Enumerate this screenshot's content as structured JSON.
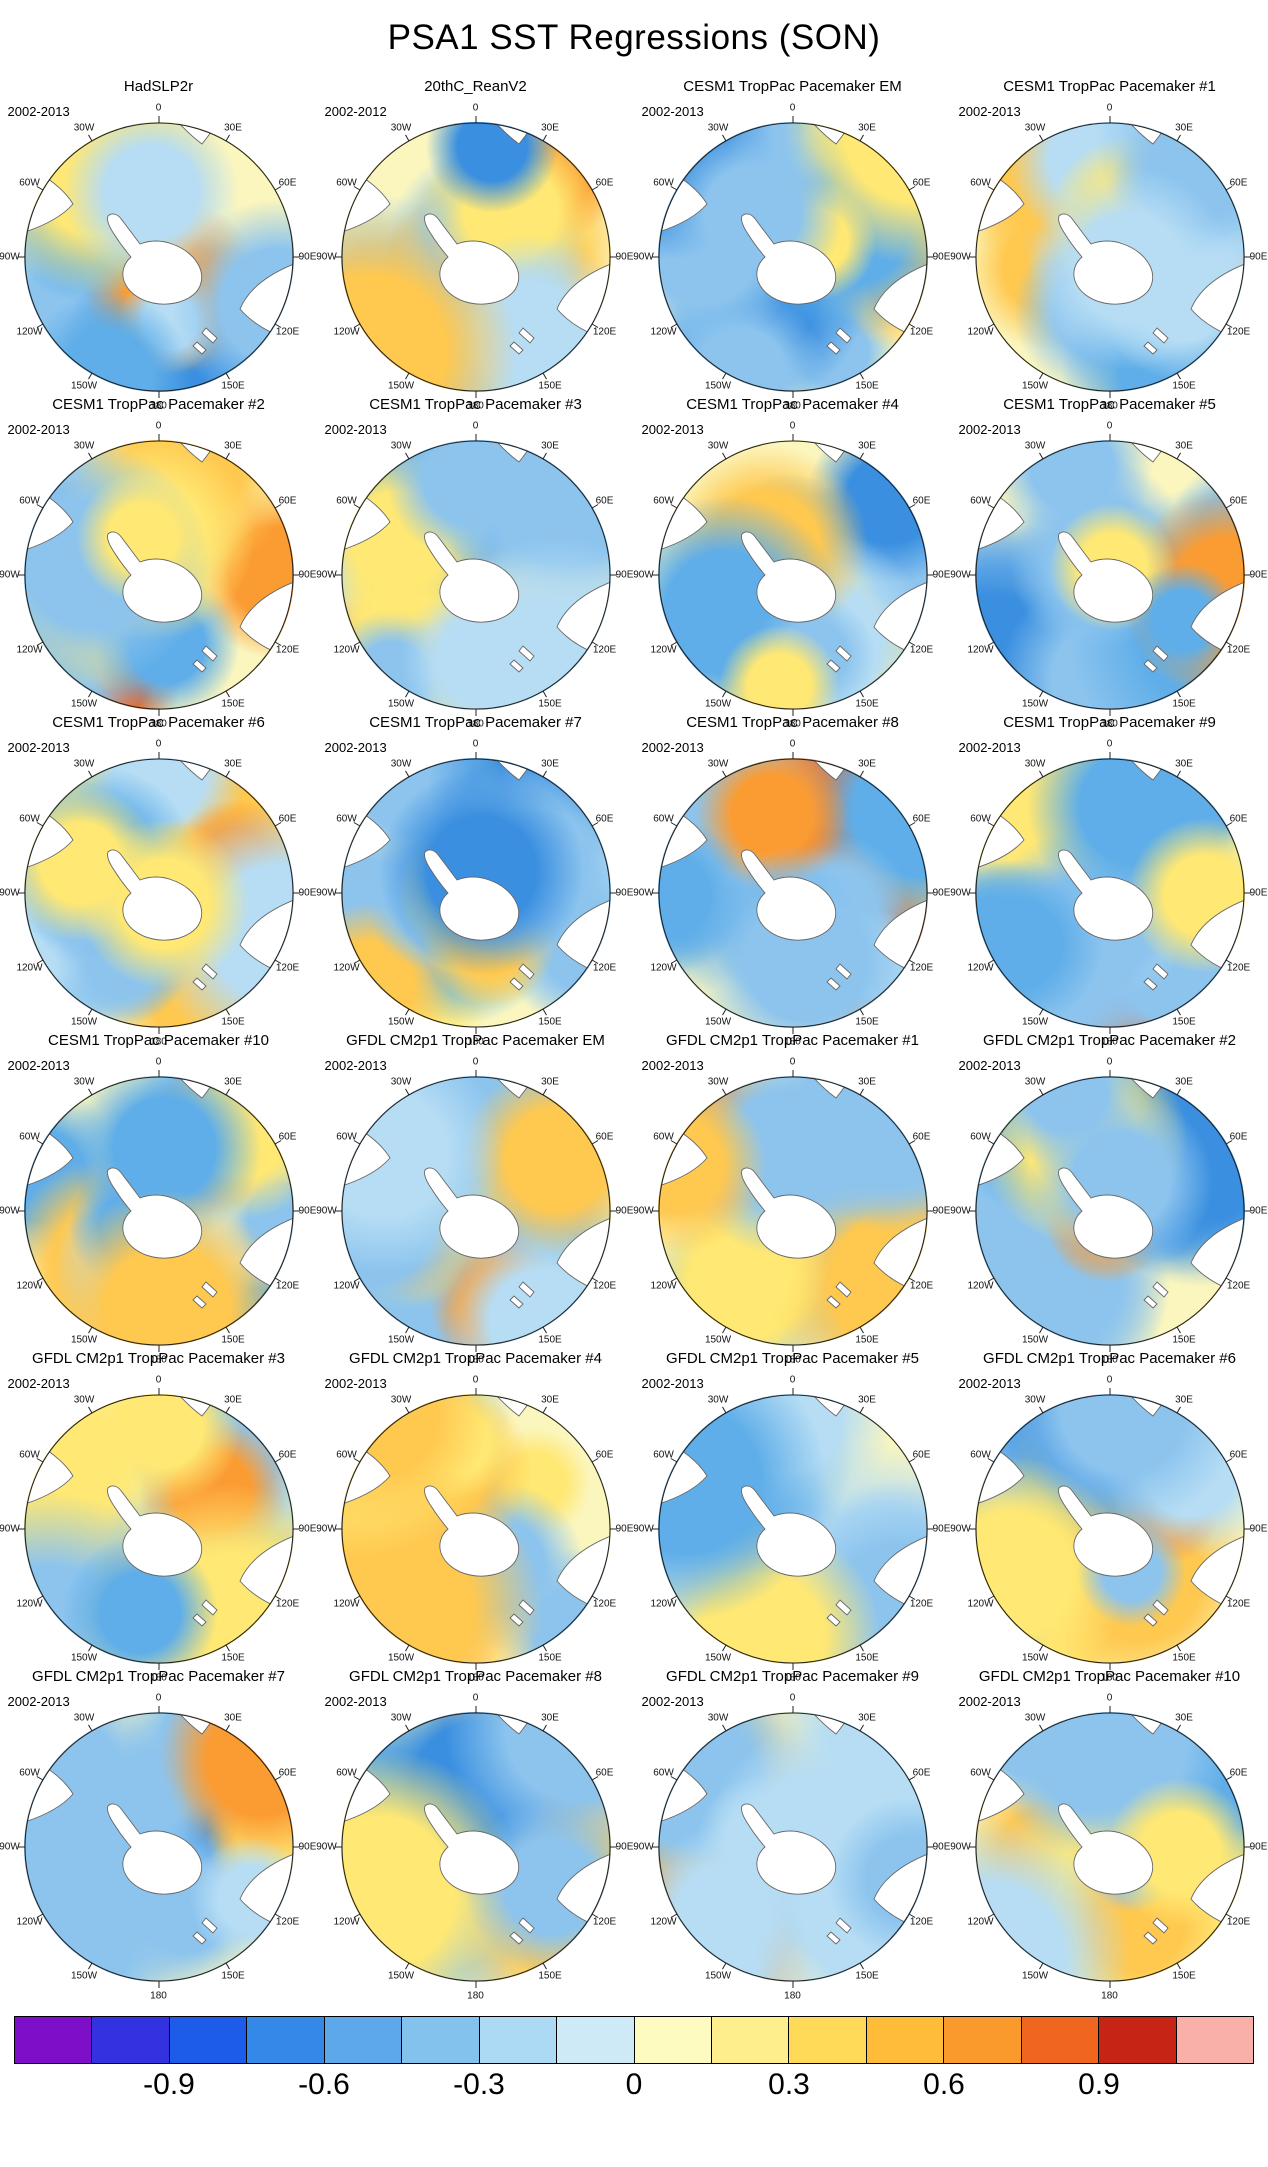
{
  "title": "PSA1 SST Regressions (SON)",
  "panels": [
    {
      "title": "HadSLP2r",
      "period": "2002-2013"
    },
    {
      "title": "20thC_ReanV2",
      "period": "2002-2012"
    },
    {
      "title": "CESM1 TropPac Pacemaker EM",
      "period": "2002-2013"
    },
    {
      "title": "CESM1 TropPac Pacemaker #1",
      "period": "2002-2013"
    },
    {
      "title": "CESM1 TropPac Pacemaker #2",
      "period": "2002-2013"
    },
    {
      "title": "CESM1 TropPac Pacemaker #3",
      "period": "2002-2013"
    },
    {
      "title": "CESM1 TropPac Pacemaker #4",
      "period": "2002-2013"
    },
    {
      "title": "CESM1 TropPac Pacemaker #5",
      "period": "2002-2013"
    },
    {
      "title": "CESM1 TropPac Pacemaker #6",
      "period": "2002-2013"
    },
    {
      "title": "CESM1 TropPac Pacemaker #7",
      "period": "2002-2013"
    },
    {
      "title": "CESM1 TropPac Pacemaker #8",
      "period": "2002-2013"
    },
    {
      "title": "CESM1 TropPac Pacemaker #9",
      "period": "2002-2013"
    },
    {
      "title": "CESM1 TropPac Pacemaker #10",
      "period": "2002-2013"
    },
    {
      "title": "GFDL CM2p1 TropPac Pacemaker EM",
      "period": "2002-2013"
    },
    {
      "title": "GFDL CM2p1 TropPac Pacemaker #1",
      "period": "2002-2013"
    },
    {
      "title": "GFDL CM2p1 TropPac Pacemaker #2",
      "period": "2002-2013"
    },
    {
      "title": "GFDL CM2p1 TropPac Pacemaker #3",
      "period": "2002-2013"
    },
    {
      "title": "GFDL CM2p1 TropPac Pacemaker #4",
      "period": "2002-2013"
    },
    {
      "title": "GFDL CM2p1 TropPac Pacemaker #5",
      "period": "2002-2013"
    },
    {
      "title": "GFDL CM2p1 TropPac Pacemaker #6",
      "period": "2002-2013"
    },
    {
      "title": "GFDL CM2p1 TropPac Pacemaker #7",
      "period": "2002-2013"
    },
    {
      "title": "GFDL CM2p1 TropPac Pacemaker #8",
      "period": "2002-2013"
    },
    {
      "title": "GFDL CM2p1 TropPac Pacemaker #9",
      "period": "2002-2013"
    },
    {
      "title": "GFDL CM2p1 TropPac Pacemaker #10",
      "period": "2002-2013"
    }
  ],
  "lon_labels": [
    "0",
    "30E",
    "60E",
    "90E",
    "120E",
    "150E",
    "180",
    "150W",
    "120W",
    "90W",
    "60W",
    "30W"
  ],
  "colorbar": {
    "tick_labels": [
      "-0.9",
      "-0.6",
      "-0.3",
      "0",
      "0.3",
      "0.6",
      "0.9"
    ],
    "boundaries": [
      -1.05,
      -0.9,
      -0.75,
      -0.6,
      -0.45,
      -0.3,
      -0.15,
      0,
      0.15,
      0.3,
      0.45,
      0.6,
      0.75,
      0.9,
      1.05
    ],
    "colors": [
      "#7E0FC8",
      "#3232E0",
      "#1C5CE8",
      "#3388E8",
      "#5CA8EA",
      "#84C2EE",
      "#ACDAF4",
      "#CFEAF7",
      "#FEFBC0",
      "#FFEF8C",
      "#FFDA58",
      "#FFBC38",
      "#FB9A2C",
      "#F0661E",
      "#C62414",
      "#F9B0A8"
    ]
  },
  "chart_data": {
    "type": "heatmap",
    "title": "PSA1 SST Regressions (SON)",
    "description": "24-panel grid (6 rows x 4 columns) of Southern Hemisphere polar stereographic contour maps of SST regressed onto PSA1 during SON; Antarctica white at center, filled contours from blue (negative) through pale yellow (near zero) to orange/red (positive)",
    "grid": {
      "rows": 6,
      "cols": 4
    },
    "panels": [
      "HadSLP2r",
      "20thC_ReanV2",
      "CESM1 TropPac Pacemaker EM",
      "CESM1 TropPac Pacemaker #1",
      "CESM1 TropPac Pacemaker #2",
      "CESM1 TropPac Pacemaker #3",
      "CESM1 TropPac Pacemaker #4",
      "CESM1 TropPac Pacemaker #5",
      "CESM1 TropPac Pacemaker #6",
      "CESM1 TropPac Pacemaker #7",
      "CESM1 TropPac Pacemaker #8",
      "CESM1 TropPac Pacemaker #9",
      "CESM1 TropPac Pacemaker #10",
      "GFDL CM2p1 TropPac Pacemaker EM",
      "GFDL CM2p1 TropPac Pacemaker #1",
      "GFDL CM2p1 TropPac Pacemaker #2",
      "GFDL CM2p1 TropPac Pacemaker #3",
      "GFDL CM2p1 TropPac Pacemaker #4",
      "GFDL CM2p1 TropPac Pacemaker #5",
      "GFDL CM2p1 TropPac Pacemaker #6",
      "GFDL CM2p1 TropPac Pacemaker #7",
      "GFDL CM2p1 TropPac Pacemaker #8",
      "GFDL CM2p1 TropPac Pacemaker #9",
      "GFDL CM2p1 TropPac Pacemaker #10"
    ],
    "panel_periods": {
      "default": "2002-2013",
      "20thC_ReanV2": "2002-2012"
    },
    "colorbar_ticks": [
      -0.9,
      -0.6,
      -0.3,
      0,
      0.3,
      0.6,
      0.9
    ],
    "contour_interval": 0.15,
    "value_range": [
      -1.2,
      1.2
    ],
    "longitude_ring_labels": [
      "0",
      "30E",
      "60E",
      "90E",
      "120E",
      "150E",
      "180",
      "150W",
      "120W",
      "90W",
      "60W",
      "30W"
    ]
  }
}
